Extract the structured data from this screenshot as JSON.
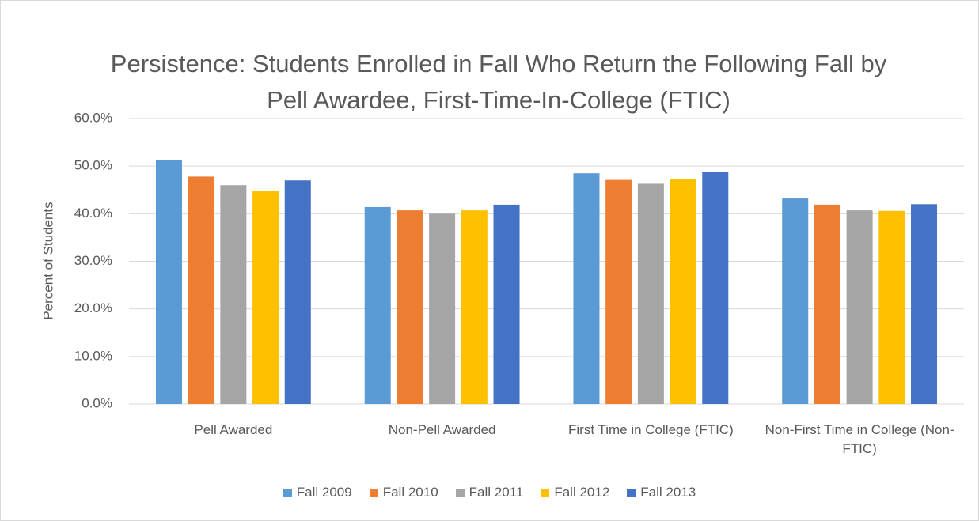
{
  "chart_data": {
    "type": "bar",
    "title": "Persistence: Students Enrolled in Fall Who Return the Following Fall by Pell Awardee, First-Time-In-College (FTIC)",
    "y_label": "Percent of Students",
    "categories": [
      "Pell Awarded",
      "Non-Pell Awarded",
      "First Time in College (FTIC)",
      "Non-First Time in College (Non-FTIC)"
    ],
    "series": [
      {
        "name": "Fall 2009",
        "color": "#5b9bd5",
        "values": [
          51.2,
          41.4,
          48.5,
          43.2
        ]
      },
      {
        "name": "Fall 2010",
        "color": "#ed7d31",
        "values": [
          47.8,
          40.7,
          47.1,
          41.9
        ]
      },
      {
        "name": "Fall 2011",
        "color": "#a5a5a5",
        "values": [
          46.0,
          40.0,
          46.3,
          40.7
        ]
      },
      {
        "name": "Fall 2012",
        "color": "#ffc000",
        "values": [
          44.7,
          40.7,
          47.3,
          40.6
        ]
      },
      {
        "name": "Fall 2013",
        "color": "#4472c4",
        "values": [
          47.0,
          41.9,
          48.7,
          42.0
        ]
      }
    ],
    "ylim": [
      0,
      60
    ],
    "yticks": [
      {
        "value": 0,
        "label": "0.0%"
      },
      {
        "value": 10,
        "label": "10.0%"
      },
      {
        "value": 20,
        "label": "20.0%"
      },
      {
        "value": 30,
        "label": "30.0%"
      },
      {
        "value": 40,
        "label": "40.0%"
      },
      {
        "value": 50,
        "label": "50.0%"
      },
      {
        "value": 60,
        "label": "60.0%"
      }
    ],
    "grid": true,
    "legend": "bottom"
  }
}
